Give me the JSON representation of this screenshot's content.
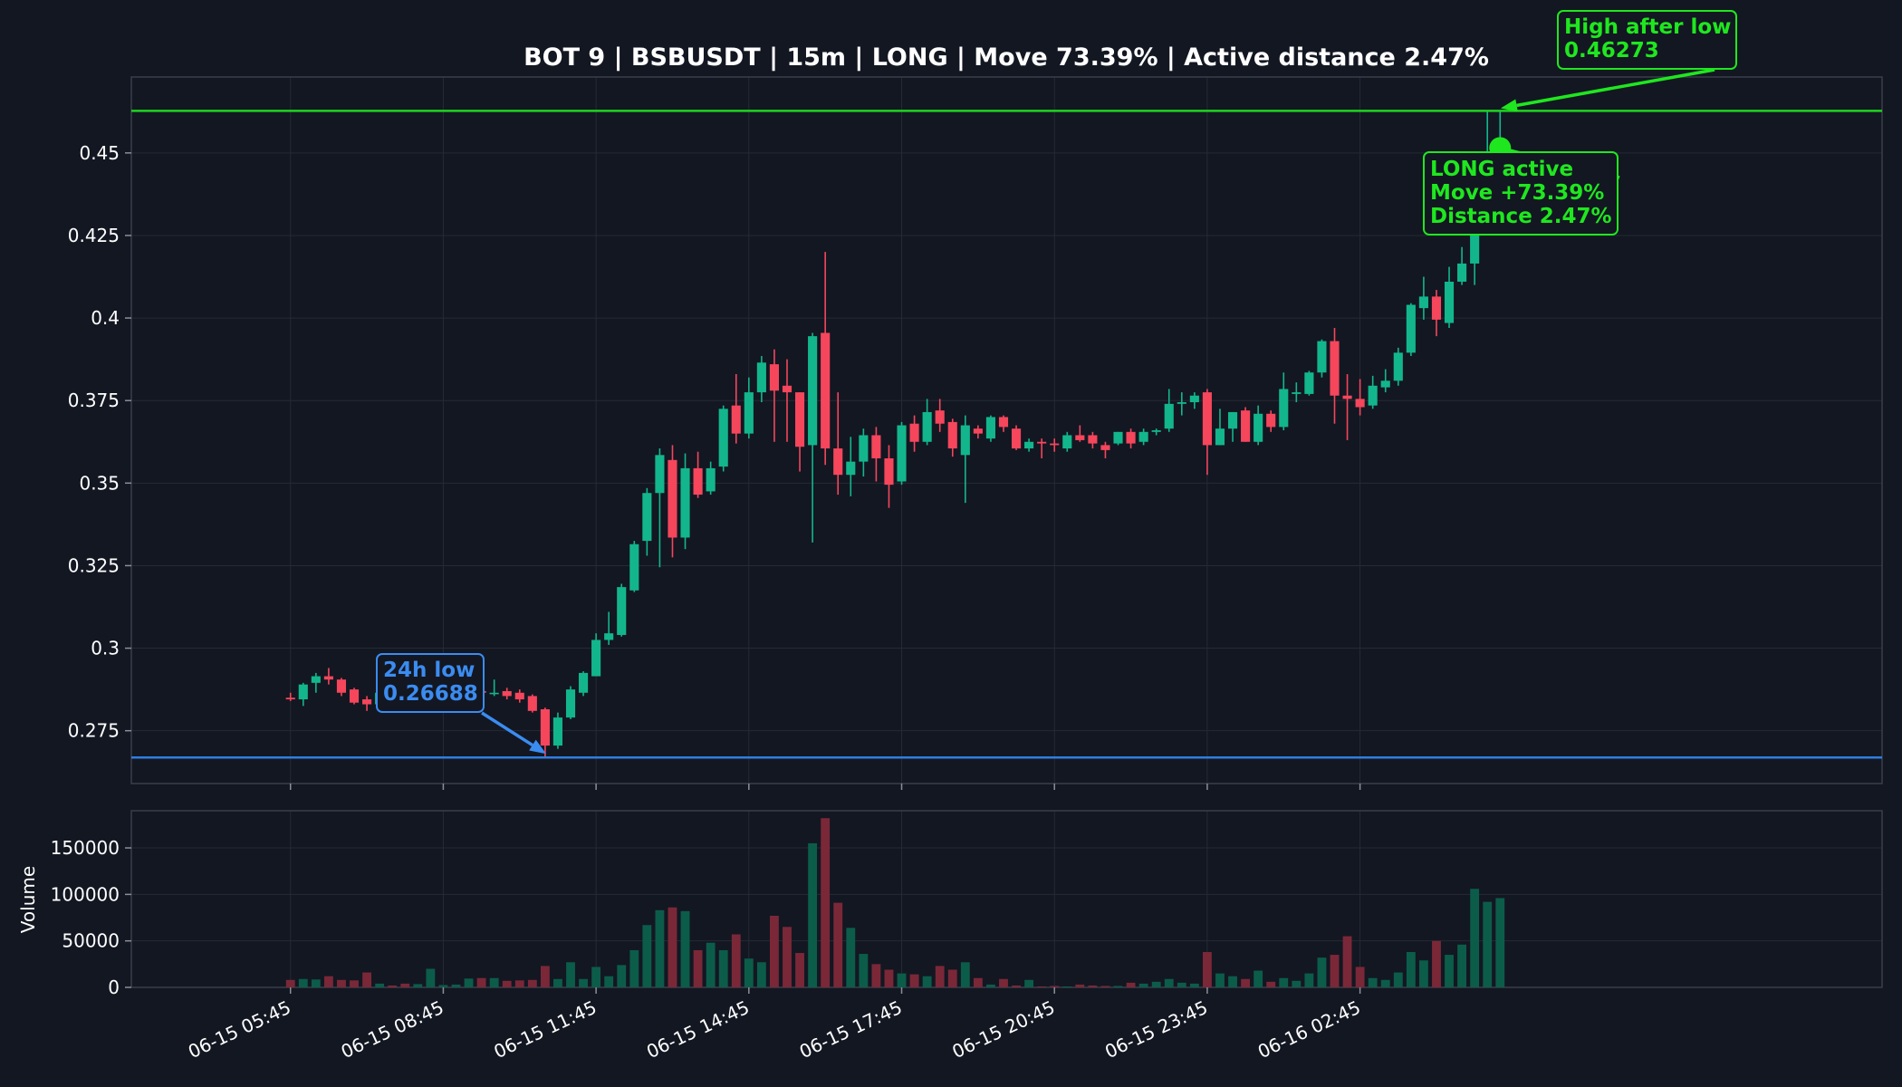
{
  "chart_data": {
    "type": "candlestick",
    "title": "BOT 9 | BSBUSDT | 15m | LONG | Move 73.39% | Active distance 2.47%",
    "colors": {
      "background": "#131722",
      "up": "#13b68c",
      "down": "#f5465c",
      "up_volume": "#0c5c4a",
      "down_volume": "#7a2838",
      "low_line": "#2f7fe0",
      "high_line": "#1ed41e",
      "annotation_green": "#1fe71f",
      "annotation_blue": "#3b8cf0",
      "axis": "#3a3e4a",
      "grid": "#262a34",
      "text": "#ffffff"
    },
    "price_axis": {
      "ylim": [
        0.259,
        0.473
      ],
      "ticks": [
        0.275,
        0.3,
        0.325,
        0.35,
        0.375,
        0.4,
        0.425,
        0.45
      ],
      "tick_labels": [
        "0.275",
        "0.3",
        "0.325",
        "0.35",
        "0.375",
        "0.4",
        "0.425",
        "0.45"
      ]
    },
    "volume_axis": {
      "ylabel": "Volume",
      "ylim": [
        0,
        190000
      ],
      "ticks": [
        0,
        50000,
        100000,
        150000
      ],
      "tick_labels": [
        "0",
        "50000",
        "100000",
        "150000"
      ]
    },
    "time_axis": {
      "start_label": "06-15 05:45",
      "bar_minutes": 15,
      "range_bars": [
        -12.5,
        125
      ],
      "ticks": [
        0,
        12,
        24,
        36,
        48,
        60,
        72,
        84
      ],
      "tick_labels": [
        "06-15 05:45",
        "06-15 08:45",
        "06-15 11:45",
        "06-15 14:45",
        "06-15 17:45",
        "06-15 20:45",
        "06-15 23:45",
        "06-16 02:45"
      ]
    },
    "horizontal_lines": [
      {
        "name": "24h low",
        "value": 0.26688
      },
      {
        "name": "High after low",
        "value": 0.46273
      }
    ],
    "annotations": {
      "low": {
        "lines": [
          "24h low",
          "0.26688"
        ],
        "point_bar": 19.8,
        "point_value": 0.2669
      },
      "high": {
        "lines": [
          "High after low",
          "0.46273"
        ],
        "point_bar": 94.9,
        "point_value": 0.4627
      },
      "active": {
        "lines": [
          "LONG active",
          "Move +73.39%",
          "Distance 2.47%"
        ],
        "point_bar": 95,
        "point_value": 0.4515
      }
    },
    "candles": [
      {
        "o": 0.285,
        "h": 0.2865,
        "l": 0.284,
        "c": 0.2845,
        "v": 8000
      },
      {
        "o": 0.2845,
        "h": 0.2895,
        "l": 0.2825,
        "c": 0.289,
        "v": 9000
      },
      {
        "o": 0.2895,
        "h": 0.2925,
        "l": 0.2865,
        "c": 0.2915,
        "v": 8500
      },
      {
        "o": 0.2915,
        "h": 0.294,
        "l": 0.289,
        "c": 0.2905,
        "v": 12000
      },
      {
        "o": 0.2905,
        "h": 0.291,
        "l": 0.2855,
        "c": 0.2865,
        "v": 8000
      },
      {
        "o": 0.2875,
        "h": 0.288,
        "l": 0.283,
        "c": 0.2835,
        "v": 7500
      },
      {
        "o": 0.2845,
        "h": 0.2855,
        "l": 0.281,
        "c": 0.283,
        "v": 16000
      },
      {
        "o": 0.283,
        "h": 0.2875,
        "l": 0.282,
        "c": 0.2865,
        "v": 4000
      },
      {
        "o": 0.286,
        "h": 0.2865,
        "l": 0.2815,
        "c": 0.282,
        "v": 2000
      },
      {
        "o": 0.2825,
        "h": 0.284,
        "l": 0.2815,
        "c": 0.282,
        "v": 4000
      },
      {
        "o": 0.282,
        "h": 0.2835,
        "l": 0.2815,
        "c": 0.2825,
        "v": 3500
      },
      {
        "o": 0.2825,
        "h": 0.285,
        "l": 0.2815,
        "c": 0.2835,
        "v": 20000
      },
      {
        "o": 0.283,
        "h": 0.2845,
        "l": 0.2825,
        "c": 0.2835,
        "v": 2500
      },
      {
        "o": 0.2835,
        "h": 0.286,
        "l": 0.2825,
        "c": 0.284,
        "v": 3000
      },
      {
        "o": 0.284,
        "h": 0.2875,
        "l": 0.283,
        "c": 0.2865,
        "v": 9500
      },
      {
        "o": 0.287,
        "h": 0.2895,
        "l": 0.2855,
        "c": 0.2865,
        "v": 10000
      },
      {
        "o": 0.2865,
        "h": 0.2905,
        "l": 0.2855,
        "c": 0.2865,
        "v": 10000
      },
      {
        "o": 0.287,
        "h": 0.288,
        "l": 0.2845,
        "c": 0.2855,
        "v": 7000
      },
      {
        "o": 0.2865,
        "h": 0.2875,
        "l": 0.2835,
        "c": 0.2845,
        "v": 7500
      },
      {
        "o": 0.2855,
        "h": 0.286,
        "l": 0.2805,
        "c": 0.281,
        "v": 8000
      },
      {
        "o": 0.2815,
        "h": 0.282,
        "l": 0.2669,
        "c": 0.2705,
        "v": 23000
      },
      {
        "o": 0.2705,
        "h": 0.2805,
        "l": 0.2695,
        "c": 0.279,
        "v": 9000
      },
      {
        "o": 0.279,
        "h": 0.2885,
        "l": 0.2785,
        "c": 0.2875,
        "v": 27000
      },
      {
        "o": 0.2865,
        "h": 0.293,
        "l": 0.2855,
        "c": 0.2925,
        "v": 9000
      },
      {
        "o": 0.2915,
        "h": 0.3045,
        "l": 0.2915,
        "c": 0.3025,
        "v": 22000
      },
      {
        "o": 0.3025,
        "h": 0.311,
        "l": 0.301,
        "c": 0.3045,
        "v": 12000
      },
      {
        "o": 0.304,
        "h": 0.3195,
        "l": 0.3035,
        "c": 0.3185,
        "v": 24000
      },
      {
        "o": 0.3175,
        "h": 0.3325,
        "l": 0.317,
        "c": 0.3315,
        "v": 40000
      },
      {
        "o": 0.3325,
        "h": 0.3485,
        "l": 0.328,
        "c": 0.347,
        "v": 67000
      },
      {
        "o": 0.347,
        "h": 0.3605,
        "l": 0.3245,
        "c": 0.3585,
        "v": 83000
      },
      {
        "o": 0.357,
        "h": 0.3615,
        "l": 0.3275,
        "c": 0.3335,
        "v": 86000
      },
      {
        "o": 0.3335,
        "h": 0.359,
        "l": 0.33,
        "c": 0.3545,
        "v": 82000
      },
      {
        "o": 0.3545,
        "h": 0.3595,
        "l": 0.3455,
        "c": 0.3465,
        "v": 40000
      },
      {
        "o": 0.3475,
        "h": 0.3565,
        "l": 0.3465,
        "c": 0.3545,
        "v": 48000
      },
      {
        "o": 0.355,
        "h": 0.3735,
        "l": 0.3535,
        "c": 0.3725,
        "v": 40000
      },
      {
        "o": 0.3735,
        "h": 0.383,
        "l": 0.362,
        "c": 0.365,
        "v": 57000
      },
      {
        "o": 0.365,
        "h": 0.382,
        "l": 0.3635,
        "c": 0.3775,
        "v": 31000
      },
      {
        "o": 0.3775,
        "h": 0.3885,
        "l": 0.3745,
        "c": 0.3865,
        "v": 27000
      },
      {
        "o": 0.386,
        "h": 0.3905,
        "l": 0.3625,
        "c": 0.378,
        "v": 77000
      },
      {
        "o": 0.3795,
        "h": 0.3875,
        "l": 0.3625,
        "c": 0.3775,
        "v": 65000
      },
      {
        "o": 0.3775,
        "h": 0.3775,
        "l": 0.3535,
        "c": 0.361,
        "v": 37000
      },
      {
        "o": 0.3615,
        "h": 0.3955,
        "l": 0.332,
        "c": 0.3945,
        "v": 155000
      },
      {
        "o": 0.3955,
        "h": 0.42,
        "l": 0.3555,
        "c": 0.3605,
        "v": 182000
      },
      {
        "o": 0.3605,
        "h": 0.3775,
        "l": 0.3465,
        "c": 0.3525,
        "v": 91000
      },
      {
        "o": 0.3525,
        "h": 0.364,
        "l": 0.346,
        "c": 0.3565,
        "v": 64000
      },
      {
        "o": 0.3565,
        "h": 0.3665,
        "l": 0.352,
        "c": 0.3645,
        "v": 36000
      },
      {
        "o": 0.3645,
        "h": 0.367,
        "l": 0.3505,
        "c": 0.3575,
        "v": 25000
      },
      {
        "o": 0.3575,
        "h": 0.3615,
        "l": 0.3425,
        "c": 0.3495,
        "v": 19000
      },
      {
        "o": 0.3505,
        "h": 0.3685,
        "l": 0.3495,
        "c": 0.3675,
        "v": 15000
      },
      {
        "o": 0.368,
        "h": 0.3705,
        "l": 0.3595,
        "c": 0.3625,
        "v": 14000
      },
      {
        "o": 0.3625,
        "h": 0.3755,
        "l": 0.3615,
        "c": 0.3715,
        "v": 12000
      },
      {
        "o": 0.372,
        "h": 0.3755,
        "l": 0.3655,
        "c": 0.368,
        "v": 23000
      },
      {
        "o": 0.3685,
        "h": 0.3695,
        "l": 0.358,
        "c": 0.3605,
        "v": 19000
      },
      {
        "o": 0.3585,
        "h": 0.3705,
        "l": 0.344,
        "c": 0.3675,
        "v": 27000
      },
      {
        "o": 0.3665,
        "h": 0.3675,
        "l": 0.3635,
        "c": 0.365,
        "v": 10000
      },
      {
        "o": 0.3635,
        "h": 0.3705,
        "l": 0.3625,
        "c": 0.37,
        "v": 3000
      },
      {
        "o": 0.37,
        "h": 0.3705,
        "l": 0.3655,
        "c": 0.367,
        "v": 9000
      },
      {
        "o": 0.3665,
        "h": 0.3675,
        "l": 0.36,
        "c": 0.3605,
        "v": 2000
      },
      {
        "o": 0.3605,
        "h": 0.3635,
        "l": 0.3595,
        "c": 0.3625,
        "v": 8000
      },
      {
        "o": 0.3625,
        "h": 0.3635,
        "l": 0.3575,
        "c": 0.362,
        "v": 1000
      },
      {
        "o": 0.362,
        "h": 0.3635,
        "l": 0.3595,
        "c": 0.3615,
        "v": 1500
      },
      {
        "o": 0.3605,
        "h": 0.3655,
        "l": 0.3595,
        "c": 0.3645,
        "v": 1000
      },
      {
        "o": 0.3645,
        "h": 0.3675,
        "l": 0.3625,
        "c": 0.363,
        "v": 3000
      },
      {
        "o": 0.3645,
        "h": 0.3655,
        "l": 0.3605,
        "c": 0.362,
        "v": 2000
      },
      {
        "o": 0.3615,
        "h": 0.3625,
        "l": 0.3575,
        "c": 0.36,
        "v": 1500
      },
      {
        "o": 0.362,
        "h": 0.3655,
        "l": 0.3615,
        "c": 0.3655,
        "v": 1500
      },
      {
        "o": 0.3655,
        "h": 0.3665,
        "l": 0.3605,
        "c": 0.362,
        "v": 5000
      },
      {
        "o": 0.3625,
        "h": 0.3665,
        "l": 0.3615,
        "c": 0.3655,
        "v": 4000
      },
      {
        "o": 0.3655,
        "h": 0.3665,
        "l": 0.3645,
        "c": 0.366,
        "v": 6000
      },
      {
        "o": 0.3665,
        "h": 0.3785,
        "l": 0.3655,
        "c": 0.374,
        "v": 9000
      },
      {
        "o": 0.374,
        "h": 0.3775,
        "l": 0.3705,
        "c": 0.3745,
        "v": 5000
      },
      {
        "o": 0.3745,
        "h": 0.3775,
        "l": 0.3725,
        "c": 0.3765,
        "v": 4000
      },
      {
        "o": 0.3775,
        "h": 0.3785,
        "l": 0.3525,
        "c": 0.3615,
        "v": 38000
      },
      {
        "o": 0.3615,
        "h": 0.3725,
        "l": 0.3615,
        "c": 0.3665,
        "v": 15000
      },
      {
        "o": 0.3665,
        "h": 0.3715,
        "l": 0.3625,
        "c": 0.3715,
        "v": 12000
      },
      {
        "o": 0.372,
        "h": 0.373,
        "l": 0.3625,
        "c": 0.3625,
        "v": 9000
      },
      {
        "o": 0.3625,
        "h": 0.3735,
        "l": 0.3615,
        "c": 0.371,
        "v": 18000
      },
      {
        "o": 0.371,
        "h": 0.372,
        "l": 0.3655,
        "c": 0.367,
        "v": 6000
      },
      {
        "o": 0.367,
        "h": 0.3835,
        "l": 0.366,
        "c": 0.3785,
        "v": 10000
      },
      {
        "o": 0.377,
        "h": 0.3805,
        "l": 0.3745,
        "c": 0.3775,
        "v": 7000
      },
      {
        "o": 0.377,
        "h": 0.384,
        "l": 0.3765,
        "c": 0.3835,
        "v": 15000
      },
      {
        "o": 0.3835,
        "h": 0.3935,
        "l": 0.382,
        "c": 0.393,
        "v": 32000
      },
      {
        "o": 0.393,
        "h": 0.397,
        "l": 0.368,
        "c": 0.3765,
        "v": 35000
      },
      {
        "o": 0.3765,
        "h": 0.383,
        "l": 0.363,
        "c": 0.3755,
        "v": 55000
      },
      {
        "o": 0.3755,
        "h": 0.3815,
        "l": 0.3705,
        "c": 0.373,
        "v": 22000
      },
      {
        "o": 0.3735,
        "h": 0.3825,
        "l": 0.3725,
        "c": 0.3795,
        "v": 10000
      },
      {
        "o": 0.379,
        "h": 0.3845,
        "l": 0.3775,
        "c": 0.381,
        "v": 8000
      },
      {
        "o": 0.381,
        "h": 0.391,
        "l": 0.3795,
        "c": 0.3895,
        "v": 16000
      },
      {
        "o": 0.3895,
        "h": 0.4045,
        "l": 0.3885,
        "c": 0.404,
        "v": 38000
      },
      {
        "o": 0.403,
        "h": 0.4125,
        "l": 0.3995,
        "c": 0.4065,
        "v": 29000
      },
      {
        "o": 0.4065,
        "h": 0.4085,
        "l": 0.3945,
        "c": 0.3995,
        "v": 50000
      },
      {
        "o": 0.3985,
        "h": 0.4155,
        "l": 0.397,
        "c": 0.411,
        "v": 35000
      },
      {
        "o": 0.411,
        "h": 0.4215,
        "l": 0.41,
        "c": 0.4165,
        "v": 46000
      },
      {
        "o": 0.4165,
        "h": 0.4395,
        "l": 0.41,
        "c": 0.4335,
        "v": 106000
      },
      {
        "o": 0.4315,
        "h": 0.4625,
        "l": 0.4315,
        "c": 0.4485,
        "v": 92000
      },
      {
        "o": 0.4485,
        "h": 0.4627,
        "l": 0.441,
        "c": 0.4515,
        "v": 96000
      }
    ]
  }
}
